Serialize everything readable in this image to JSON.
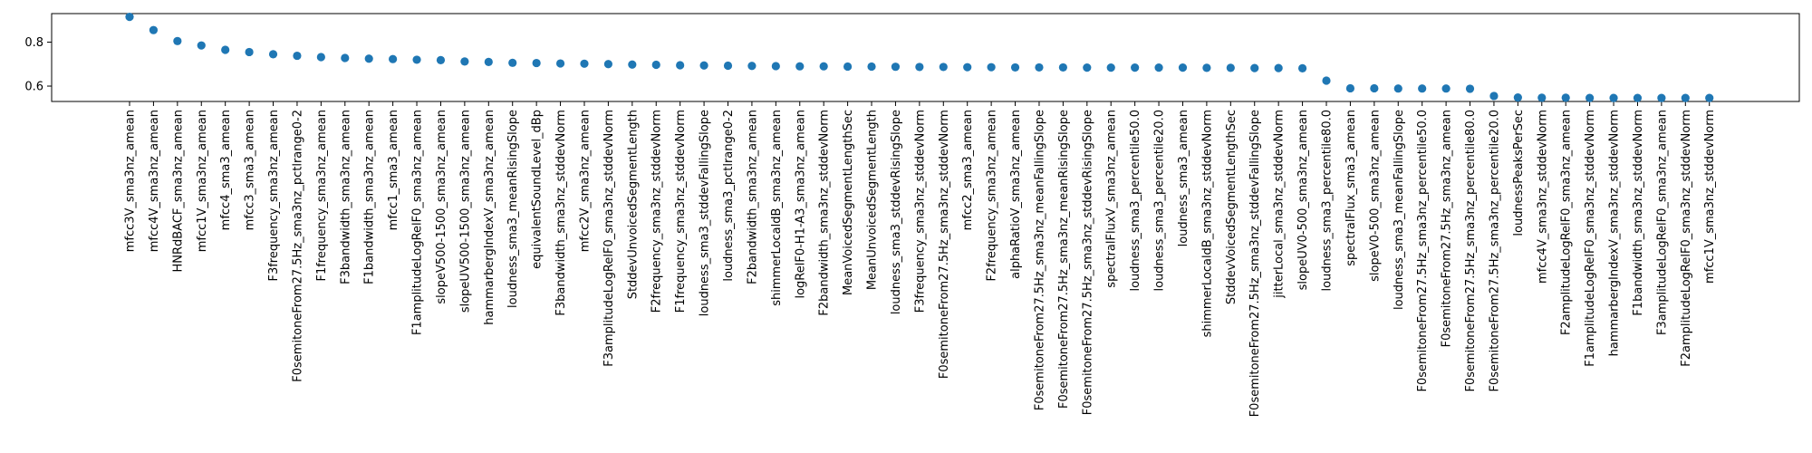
{
  "chart_data": {
    "type": "scatter",
    "title": "",
    "xlabel": "",
    "ylabel": "",
    "ylim": [
      0.53,
      0.93
    ],
    "yticks": [
      0.6,
      0.8
    ],
    "ytick_labels": [
      "0.6",
      "0.8"
    ],
    "grid": false,
    "marker_color": "#1f77b4",
    "categories": [
      "mfcc3V_sma3nz_amean",
      "mfcc4V_sma3nz_amean",
      "HNRdBACF_sma3nz_amean",
      "mfcc1V_sma3nz_amean",
      "mfcc4_sma3_amean",
      "mfcc3_sma3_amean",
      "F3frequency_sma3nz_amean",
      "F0semitoneFrom27.5Hz_sma3nz_pctlrange0-2",
      "F1frequency_sma3nz_amean",
      "F3bandwidth_sma3nz_amean",
      "F1bandwidth_sma3nz_amean",
      "mfcc1_sma3_amean",
      "F1amplitudeLogRelF0_sma3nz_amean",
      "slopeV500-1500_sma3nz_amean",
      "slopeUV500-1500_sma3nz_amean",
      "hammarbergIndexV_sma3nz_amean",
      "loudness_sma3_meanRisingSlope",
      "equivalentSoundLevel_dBp",
      "F3bandwidth_sma3nz_stddevNorm",
      "mfcc2V_sma3nz_amean",
      "F3amplitudeLogRelF0_sma3nz_stddevNorm",
      "StddevUnvoicedSegmentLength",
      "F2frequency_sma3nz_stddevNorm",
      "F1frequency_sma3nz_stddevNorm",
      "loudness_sma3_stddevFallingSlope",
      "loudness_sma3_pctlrange0-2",
      "F2bandwidth_sma3nz_amean",
      "shimmerLocaldB_sma3nz_amean",
      "logRelF0-H1-A3_sma3nz_amean",
      "F2bandwidth_sma3nz_stddevNorm",
      "MeanVoicedSegmentLengthSec",
      "MeanUnvoicedSegmentLength",
      "loudness_sma3_stddevRisingSlope",
      "F3frequency_sma3nz_stddevNorm",
      "F0semitoneFrom27.5Hz_sma3nz_stddevNorm",
      "mfcc2_sma3_amean",
      "F2frequency_sma3nz_amean",
      "alphaRatioV_sma3nz_amean",
      "F0semitoneFrom27.5Hz_sma3nz_meanFallingSlope",
      "F0semitoneFrom27.5Hz_sma3nz_meanRisingSlope",
      "F0semitoneFrom27.5Hz_sma3nz_stddevRisingSlope",
      "spectralFluxV_sma3nz_amean",
      "loudness_sma3_percentile50.0",
      "loudness_sma3_percentile20.0",
      "loudness_sma3_amean",
      "shimmerLocaldB_sma3nz_stddevNorm",
      "StddevVoicedSegmentLengthSec",
      "F0semitoneFrom27.5Hz_sma3nz_stddevFallingSlope",
      "jitterLocal_sma3nz_stddevNorm",
      "slopeUV0-500_sma3nz_amean",
      "loudness_sma3_percentile80.0",
      "spectralFlux_sma3_amean",
      "slopeV0-500_sma3nz_amean",
      "loudness_sma3_meanFallingSlope",
      "F0semitoneFrom27.5Hz_sma3nz_percentile50.0",
      "F0semitoneFrom27.5Hz_sma3nz_amean",
      "F0semitoneFrom27.5Hz_sma3nz_percentile80.0",
      "F0semitoneFrom27.5Hz_sma3nz_percentile20.0",
      "loudnessPeaksPerSec",
      "mfcc4V_sma3nz_stddevNorm",
      "F2amplitudeLogRelF0_sma3nz_amean",
      "F1amplitudeLogRelF0_sma3nz_stddevNorm",
      "hammarbergIndexV_sma3nz_stddevNorm",
      "F1bandwidth_sma3nz_stddevNorm",
      "F3amplitudeLogRelF0_sma3nz_amean",
      "F2amplitudeLogRelF0_sma3nz_stddevNorm",
      "mfcc1V_sma3nz_stddevNorm"
    ],
    "values": [
      0.915,
      0.855,
      0.805,
      0.785,
      0.765,
      0.755,
      0.745,
      0.738,
      0.732,
      0.728,
      0.725,
      0.723,
      0.72,
      0.718,
      0.712,
      0.71,
      0.706,
      0.705,
      0.703,
      0.702,
      0.7,
      0.698,
      0.697,
      0.695,
      0.694,
      0.693,
      0.692,
      0.691,
      0.69,
      0.69,
      0.689,
      0.689,
      0.688,
      0.687,
      0.687,
      0.686,
      0.686,
      0.685,
      0.685,
      0.685,
      0.684,
      0.684,
      0.684,
      0.684,
      0.684,
      0.683,
      0.683,
      0.682,
      0.682,
      0.681,
      0.625,
      0.59,
      0.59,
      0.589,
      0.589,
      0.589,
      0.588,
      0.555,
      0.548,
      0.547,
      0.547,
      0.546,
      0.546,
      0.546,
      0.546,
      0.546,
      0.546
    ]
  }
}
